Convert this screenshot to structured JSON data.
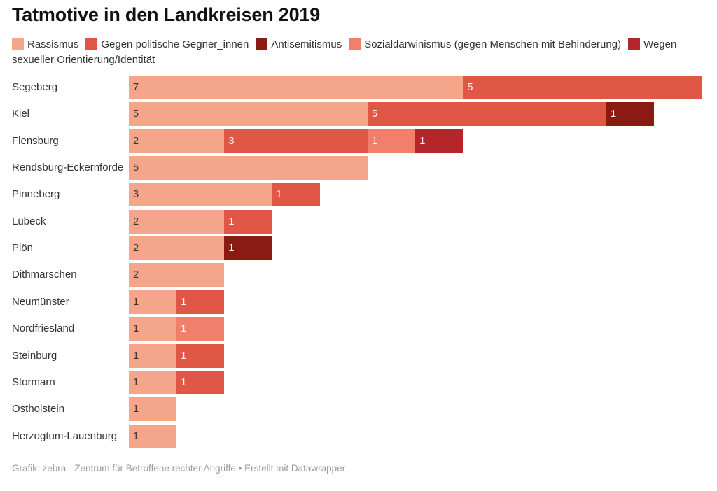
{
  "title": "Tatmotive in den Landkreisen 2019",
  "footer": {
    "source": "Grafik: zebra - Zentrum für Betroffene rechter Angriffe • Erstellt mit Datawrapper"
  },
  "colors": {
    "Rassismus": "#f4a58a",
    "Gegen politische Gegner_innen": "#e05746",
    "Antisemitismus": "#8b1a12",
    "Sozialdarwinismus": "#f07f6b",
    "Wegen sexueller Orientierung": "#b5262a"
  },
  "chart_data": {
    "type": "bar",
    "orientation": "horizontal",
    "stacked": true,
    "title": "Tatmotive in den Landkreisen 2019",
    "xlim": [
      0,
      12
    ],
    "grid": false,
    "legend_position": "top",
    "categories": [
      "Segeberg",
      "Kiel",
      "Flensburg",
      "Rendsburg-Eckernförde",
      "Pinneberg",
      "Lübeck",
      "Plön",
      "Dithmarschen",
      "Neumünster",
      "Nordfriesland",
      "Steinburg",
      "Stormarn",
      "Ostholstein",
      "Herzogtum-Lauenburg"
    ],
    "series": [
      {
        "name": "Rassismus",
        "color": "#f4a58a",
        "label_color": "#333333",
        "values": [
          7,
          5,
          2,
          5,
          3,
          2,
          2,
          2,
          1,
          1,
          1,
          1,
          1,
          1
        ]
      },
      {
        "name": "Gegen politische Gegner_innen",
        "color": "#e05746",
        "label_color": "#ffffff",
        "values": [
          5,
          5,
          3,
          0,
          1,
          1,
          0,
          0,
          1,
          0,
          1,
          1,
          0,
          0
        ]
      },
      {
        "name": "Antisemitismus",
        "color": "#8b1a12",
        "label_color": "#ffffff",
        "values": [
          0,
          1,
          0,
          0,
          0,
          0,
          1,
          0,
          0,
          0,
          0,
          0,
          0,
          0
        ]
      },
      {
        "name": "Sozialdarwinismus (gegen Menschen mit Behinderung)",
        "color": "#f07f6b",
        "label_color": "#ffffff",
        "values": [
          0,
          0,
          1,
          0,
          0,
          0,
          0,
          0,
          0,
          1,
          0,
          0,
          0,
          0
        ]
      },
      {
        "name": "Wegen sexueller Orientierung/Identität",
        "color": "#b5262a",
        "label_color": "#ffffff",
        "values": [
          0,
          0,
          1,
          0,
          0,
          0,
          0,
          0,
          0,
          0,
          0,
          0,
          0,
          0
        ]
      }
    ]
  }
}
